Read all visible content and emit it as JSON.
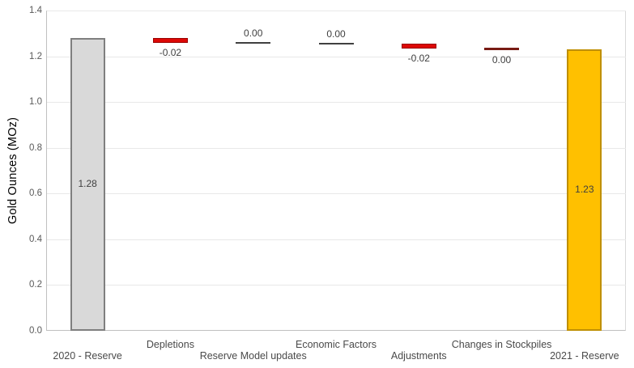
{
  "chart_data": {
    "type": "bar",
    "subtype": "waterfall",
    "title": "",
    "xlabel": "",
    "ylabel": "Gold Ounces (MOz)",
    "ylim": [
      0,
      1.4
    ],
    "ytick_labels": [
      "0.0",
      "0.2",
      "0.4",
      "0.6",
      "0.8",
      "1.0",
      "1.2",
      "1.4"
    ],
    "grid": "horizontal",
    "legend": "none",
    "categories": [
      "2020 - Reserve",
      "Depletions",
      "Reserve Model updates",
      "Economic Factors",
      "Adjustments",
      "Changes in Stockpiles",
      "2021 - Reserve"
    ],
    "values": [
      1.28,
      -0.02,
      0.0,
      0.0,
      -0.02,
      0.0,
      1.23
    ],
    "value_labels": [
      "1.28",
      "-0.02",
      "0.00",
      "0.00",
      "-0.02",
      "0.00",
      "1.23"
    ],
    "bars": [
      {
        "kind": "column",
        "color": "gray",
        "from": 0,
        "to": 1.28,
        "border_w": 2,
        "label_pos": "inside",
        "label_row": "lower"
      },
      {
        "kind": "column",
        "color": "red",
        "from": 1.259,
        "to": 1.28,
        "border_w": 1,
        "label_pos": "below",
        "label_row": "upper"
      },
      {
        "kind": "line",
        "color": "gray_line",
        "at": 1.2575,
        "label_pos": "above",
        "label_row": "lower"
      },
      {
        "kind": "line",
        "color": "gray_line",
        "at": 1.256,
        "label_pos": "above",
        "label_row": "upper"
      },
      {
        "kind": "column",
        "color": "red",
        "from": 1.2335,
        "to": 1.2545,
        "border_w": 1,
        "label_pos": "below",
        "label_row": "lower"
      },
      {
        "kind": "line",
        "color": "darkred_line",
        "at": 1.2315,
        "label_pos": "below",
        "label_row": "upper"
      },
      {
        "kind": "column",
        "color": "gold",
        "from": 0,
        "to": 1.23,
        "border_w": 2,
        "label_pos": "inside",
        "label_row": "lower"
      }
    ],
    "colors": {
      "gray": {
        "fill": "#d9d9d9",
        "border": "#7f7f7f"
      },
      "red": {
        "fill": "#dd0806",
        "border": "#9a0000"
      },
      "gold": {
        "fill": "#ffc000",
        "border": "#bf8f00"
      },
      "gray_line": {
        "fill": "#404040",
        "h": 2
      },
      "darkred_line": {
        "fill": "#781b14",
        "h": 3
      },
      "gridline": "#e8e8e8",
      "axis_line": "#c0c0c0",
      "plot_border": "#d9d9d9",
      "tick_text": "#595959",
      "category_text": "#4a4a4a",
      "value_text": "#3f3f3f",
      "background": "#ffffff"
    }
  }
}
